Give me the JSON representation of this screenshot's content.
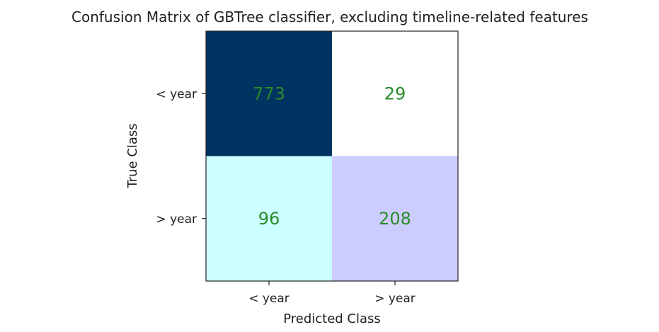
{
  "chart_data": {
    "type": "heatmap",
    "title": "Confusion Matrix of GBTree classifier, excluding timeline-related features",
    "xlabel": "Predicted Class",
    "ylabel": "True Class",
    "x_categories": [
      "< year",
      "> year"
    ],
    "y_categories": [
      "< year",
      "> year"
    ],
    "values": [
      [
        773,
        29
      ],
      [
        96,
        208
      ]
    ],
    "cell_colors": [
      [
        "#003262",
        "#ffffff"
      ],
      [
        "#ccffff",
        "#ccccff"
      ]
    ],
    "value_label_color": "#2a8a2a",
    "grid": false
  }
}
